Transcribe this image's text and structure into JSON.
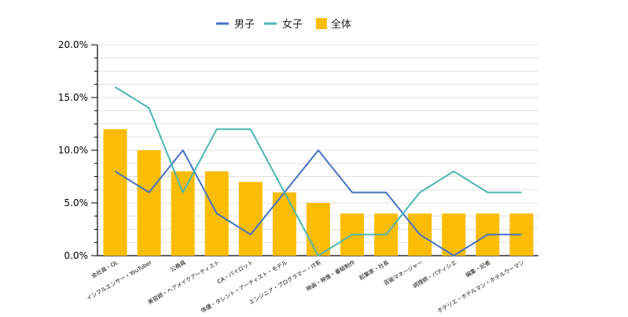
{
  "chart_data": {
    "type": "bar",
    "title": "",
    "xlabel": "",
    "ylabel": "",
    "ylim": [
      0,
      20
    ],
    "y_ticks": [
      "0.0%",
      "5.0%",
      "10.0%",
      "15.0%",
      "20.0%"
    ],
    "grid": true,
    "legend_position": "top",
    "categories": [
      "会社員・OL",
      "インフルエンサー・YouTuber",
      "公務員",
      "美容師・ヘアメイクアーティスト",
      "CA・パイロット",
      "俳優・タレント・アーティスト・モデル",
      "エンジニア・プログラマー・IT系",
      "映画・映像・番組制作",
      "起業家・社長",
      "芸能マネージャー",
      "調理師・パティシエ",
      "編集・記者",
      "ホテリエ・ホテルマン・ホテルウーマン"
    ],
    "series": [
      {
        "name": "男子",
        "type": "line",
        "color": "#4472C4",
        "values": [
          8,
          6,
          10,
          4,
          2,
          6,
          10,
          6,
          6,
          2,
          0,
          2,
          2
        ]
      },
      {
        "name": "女子",
        "type": "line",
        "color": "#4BB5B5",
        "values": [
          16,
          14,
          6,
          12,
          12,
          6,
          0,
          2,
          2,
          6,
          8,
          6,
          6
        ]
      },
      {
        "name": "全体",
        "type": "bar",
        "color": "#FBBC04",
        "values": [
          12,
          10,
          8,
          8,
          7,
          6,
          5,
          4,
          4,
          4,
          4,
          4,
          4
        ]
      }
    ]
  }
}
